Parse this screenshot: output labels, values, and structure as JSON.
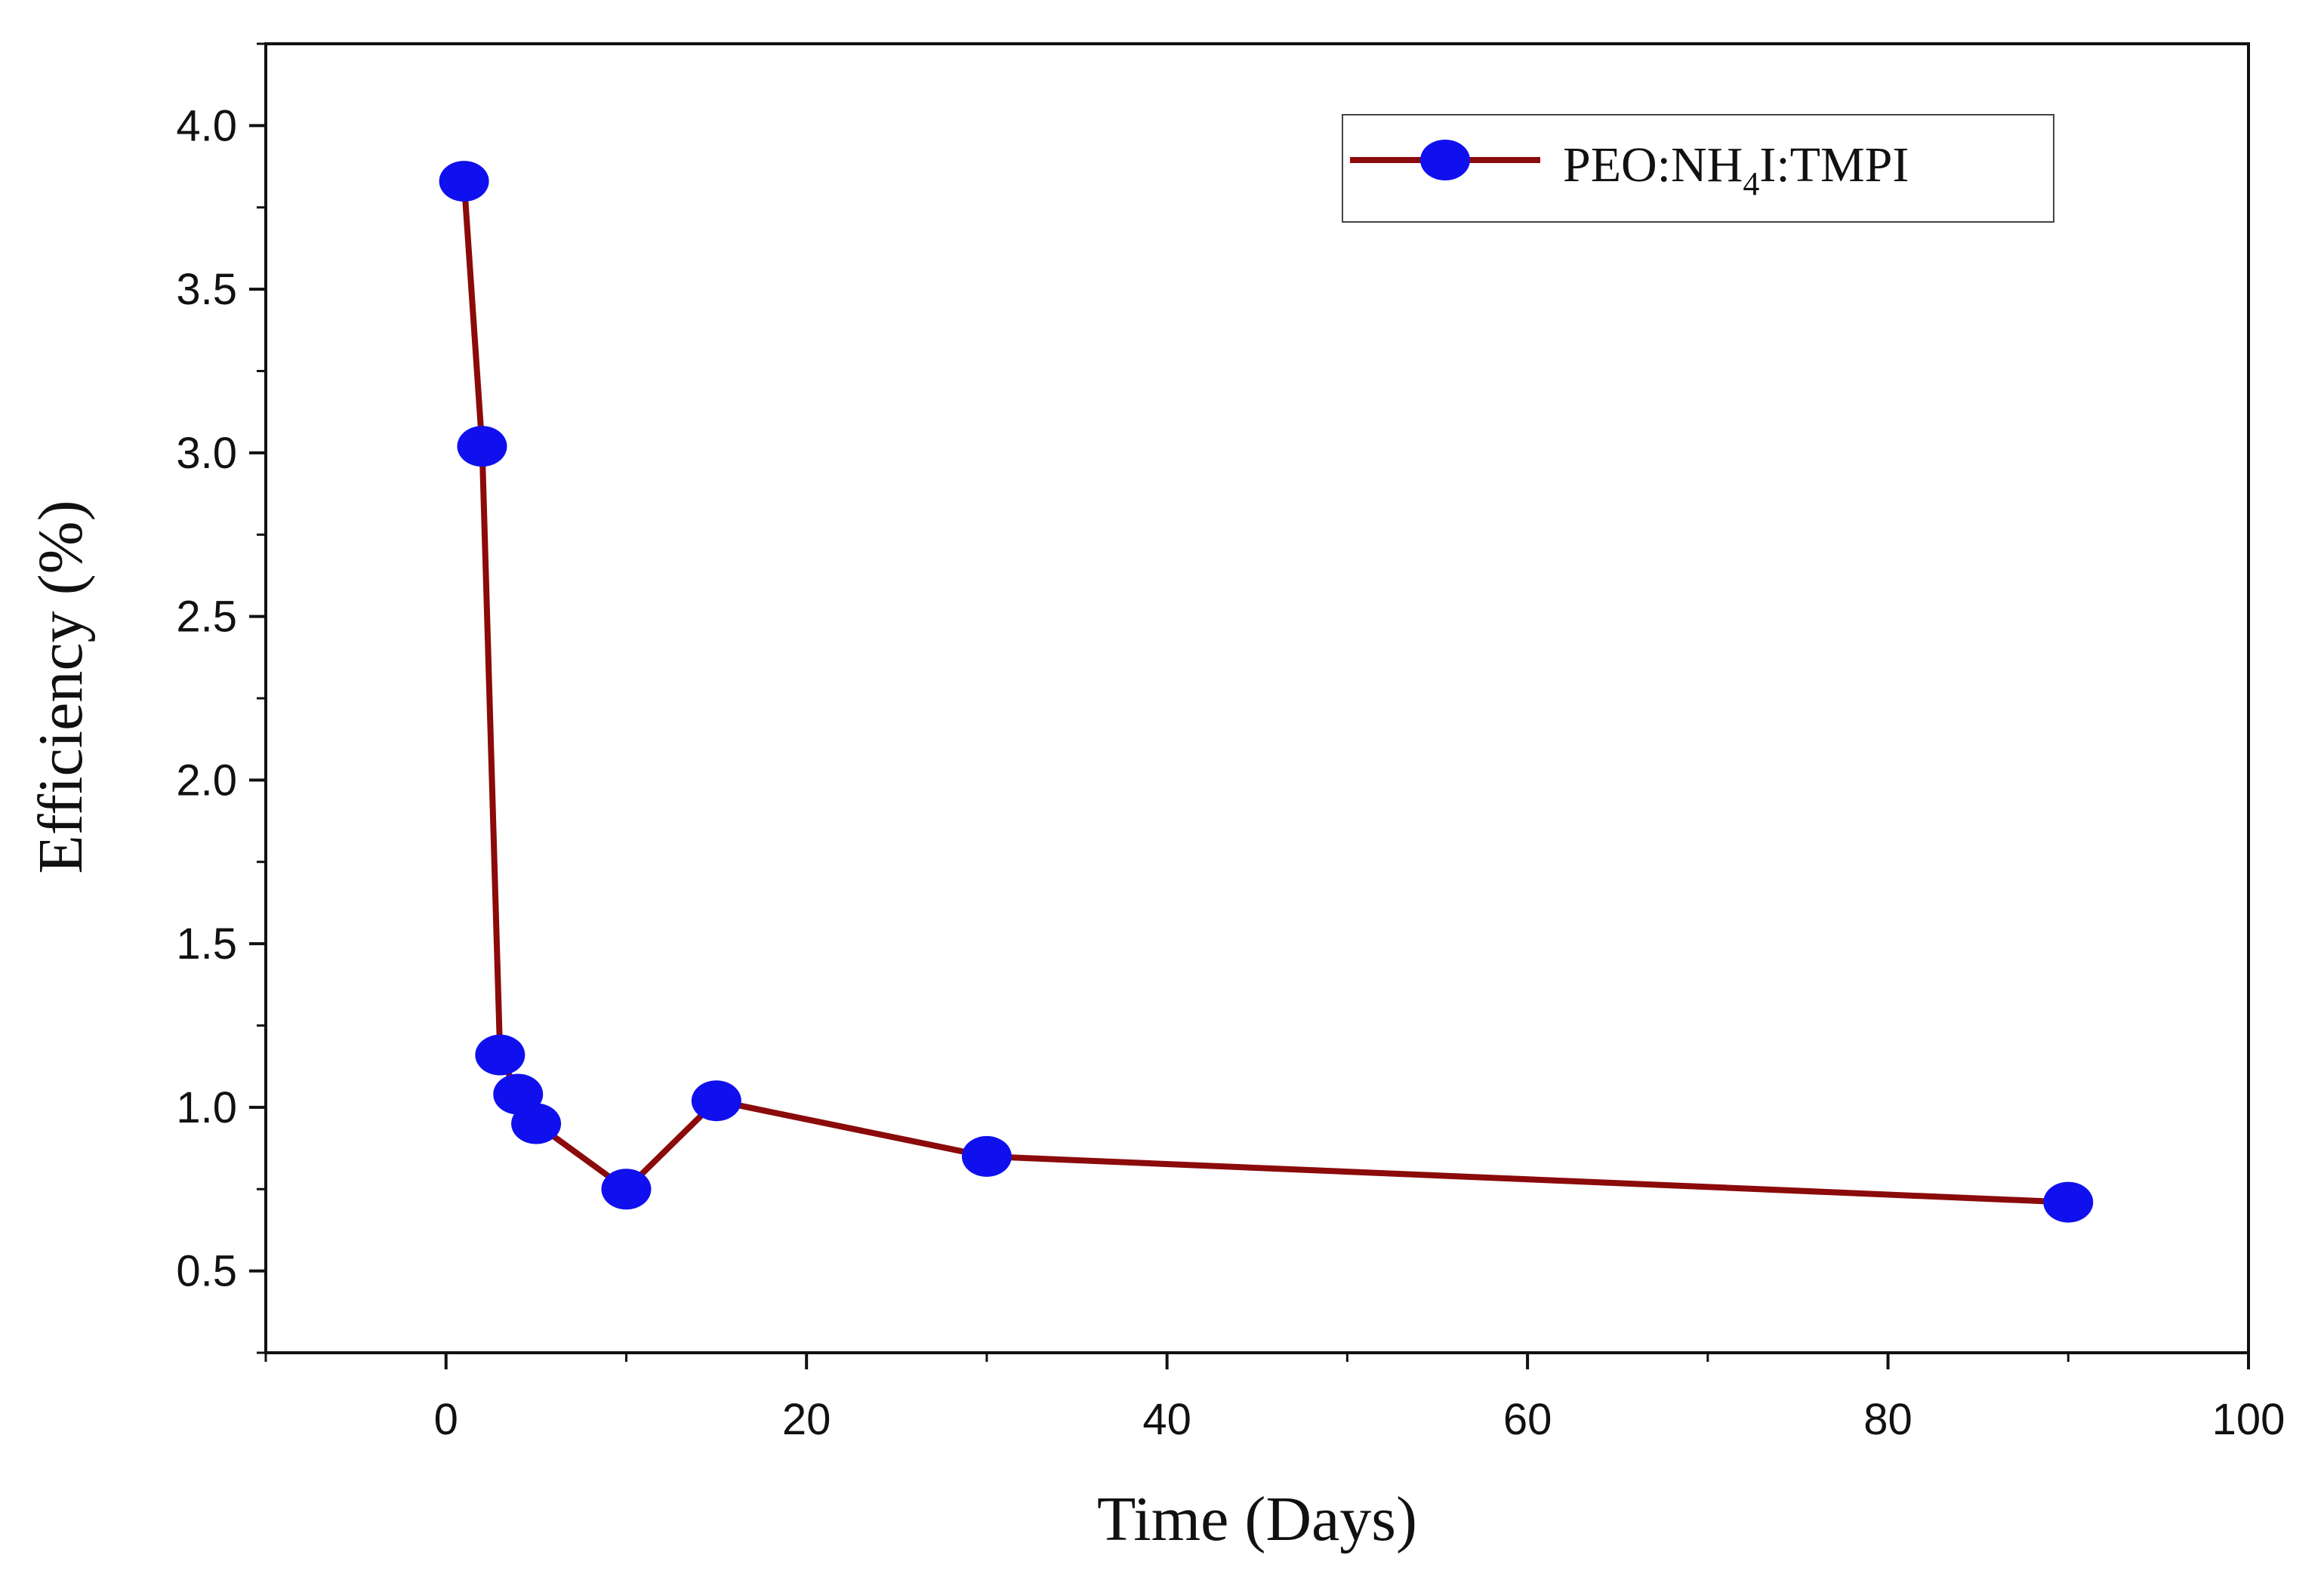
{
  "chart_data": {
    "type": "line",
    "title": "",
    "xlabel": "Time (Days)",
    "ylabel": "Efficiency (%)",
    "xlim": [
      -10,
      100
    ],
    "ylim": [
      0.25,
      4.25
    ],
    "x_ticks": [
      0,
      20,
      40,
      60,
      80,
      100
    ],
    "x_tick_labels": [
      "0",
      "20",
      "40",
      "60",
      "80",
      "100"
    ],
    "y_ticks": [
      0.5,
      1.0,
      1.5,
      2.0,
      2.5,
      3.0,
      3.5,
      4.0
    ],
    "y_tick_labels": [
      "0.5",
      "1.0",
      "1.5",
      "2.0",
      "2.5",
      "3.0",
      "3.5",
      "4.0"
    ],
    "grid": false,
    "legend_position": "top-right",
    "series": [
      {
        "name": "PEO:NH4I:TMPI",
        "legend_parts": {
          "main": "PEO:NH",
          "subscript": "4",
          "suffix": "I:TMPI"
        },
        "line_color": "#8b0a0a",
        "marker_color": "#1010ee",
        "x": [
          1,
          2,
          3,
          4,
          5,
          10,
          15,
          30,
          90
        ],
        "y": [
          3.83,
          3.02,
          1.16,
          1.04,
          0.95,
          0.75,
          1.02,
          0.85,
          0.71
        ]
      }
    ]
  }
}
